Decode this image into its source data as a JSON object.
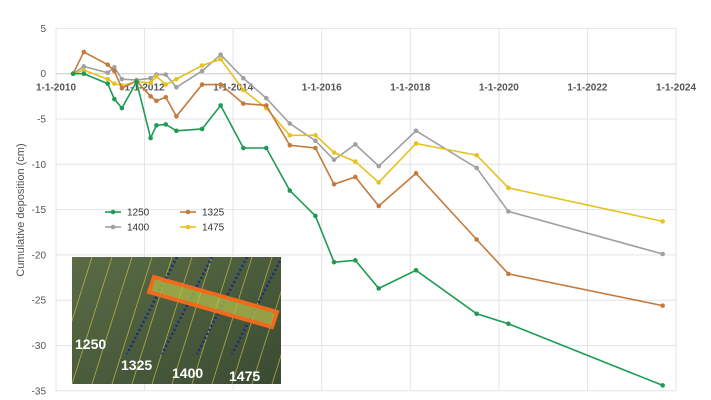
{
  "chart_data": {
    "type": "line",
    "title": "",
    "xlabel": "",
    "ylabel": "Cumulative deposition (cm)",
    "ylim": [
      -35,
      5
    ],
    "yticks": [
      "5",
      "0",
      "-5",
      "-10",
      "-15",
      "-20",
      "-25",
      "-30",
      "-35"
    ],
    "xlim": [
      "2010-01-01",
      "2024-01-01"
    ],
    "xticks": [
      "1-1-2010",
      "1-1-2012",
      "1-1-2014",
      "1-1-2016",
      "1-1-2018",
      "1-1-2020",
      "1-1-2022",
      "1-1-2024"
    ],
    "grid": true,
    "legend_placement": "bottom-left",
    "x": [
      "2010-05-22",
      "2010-08-18",
      "2011-03-03",
      "2011-04-27",
      "2011-06-28",
      "2011-10-27",
      "2012-02-20",
      "2012-04-08",
      "2012-06-24",
      "2012-09-20",
      "2013-04-20",
      "2013-09-20",
      "2014-03-26",
      "2014-10-01",
      "2015-04-13",
      "2015-11-10",
      "2016-04-12",
      "2016-10-05",
      "2017-04-16",
      "2018-02-17",
      "2019-07-02",
      "2020-03-20",
      "2023-09-13"
    ],
    "series": [
      {
        "name": "1250",
        "color": "#1f9a54",
        "values": [
          0,
          0,
          -1.1,
          -2.8,
          -3.8,
          -0.9,
          -7.1,
          -5.7,
          -5.6,
          -6.3,
          -6.1,
          -3.5,
          -8.2,
          -8.2,
          -12.9,
          -15.7,
          -20.8,
          -20.6,
          -23.7,
          -21.7,
          -26.5,
          -27.6,
          -34.4
        ]
      },
      {
        "name": "1325",
        "color": "#c47a3c",
        "values": [
          0,
          2.4,
          1.0,
          0.3,
          -1.6,
          -0.8,
          -2.5,
          -3.0,
          -2.6,
          -4.7,
          -1.2,
          -1.2,
          -3.3,
          -3.5,
          -7.9,
          -8.2,
          -12.2,
          -11.4,
          -14.6,
          -11.0,
          -18.3,
          -22.1,
          -25.6
        ]
      },
      {
        "name": "1400",
        "color": "#a0a0a0",
        "values": [
          0,
          0.8,
          0.1,
          0.7,
          -0.6,
          -0.7,
          -0.5,
          -0.1,
          -0.1,
          -1.5,
          0.3,
          2.1,
          -0.5,
          -2.7,
          -5.5,
          -7.4,
          -9.5,
          -7.8,
          -10.2,
          -6.3,
          -10.4,
          -15.2,
          -19.9
        ]
      },
      {
        "name": "1475",
        "color": "#e6c21e",
        "values": [
          0,
          0.4,
          -0.6,
          -1.1,
          -1.3,
          -0.9,
          -1.0,
          -0.3,
          -1.2,
          -0.6,
          0.9,
          1.6,
          -1.8,
          -3.8,
          -6.8,
          -6.8,
          -8.7,
          -9.7,
          -12.0,
          -7.7,
          -9.0,
          -12.6,
          -16.3
        ]
      }
    ]
  },
  "inset": {
    "labels": [
      "1250",
      "1325",
      "1400",
      "1475"
    ],
    "highlight_color": "#f06a1e"
  }
}
